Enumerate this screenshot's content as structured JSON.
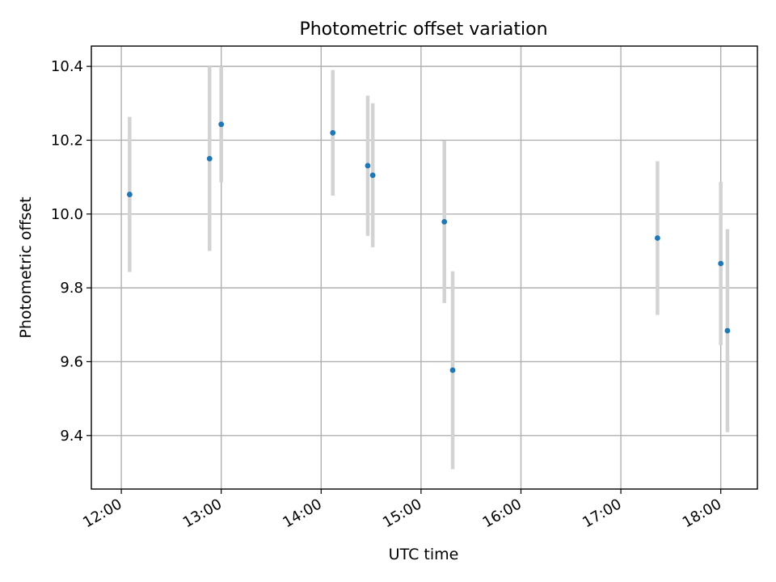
{
  "chart_data": {
    "type": "scatter",
    "title": "Photometric offset variation",
    "xlabel": "UTC time",
    "ylabel": "Photometric offset",
    "xlim": [
      "11:42",
      "18:22"
    ],
    "ylim": [
      9.255,
      10.455
    ],
    "x_ticks": [
      "12:00",
      "13:00",
      "14:00",
      "15:00",
      "16:00",
      "17:00",
      "18:00"
    ],
    "y_ticks": [
      9.4,
      9.6,
      9.8,
      10.0,
      10.2,
      10.4
    ],
    "y_tick_labels": [
      "9.4",
      "9.6",
      "9.8",
      "10.0",
      "10.2",
      "10.4"
    ],
    "grid": true,
    "series": [
      {
        "x": [
          "12:05",
          "12:53",
          "13:00",
          "14:07",
          "14:28",
          "14:31",
          "15:14",
          "15:19",
          "17:22",
          "18:00",
          "18:04"
        ],
        "y": [
          10.053,
          10.15,
          10.243,
          10.22,
          10.131,
          10.105,
          9.979,
          9.577,
          9.935,
          9.866,
          9.684
        ],
        "yerr": [
          0.21,
          0.25,
          0.157,
          0.17,
          0.19,
          0.195,
          0.22,
          0.268,
          0.208,
          0.221,
          0.275
        ],
        "marker_color": "#1f77b4",
        "errorbar_color": "#d3d3d3"
      }
    ]
  }
}
